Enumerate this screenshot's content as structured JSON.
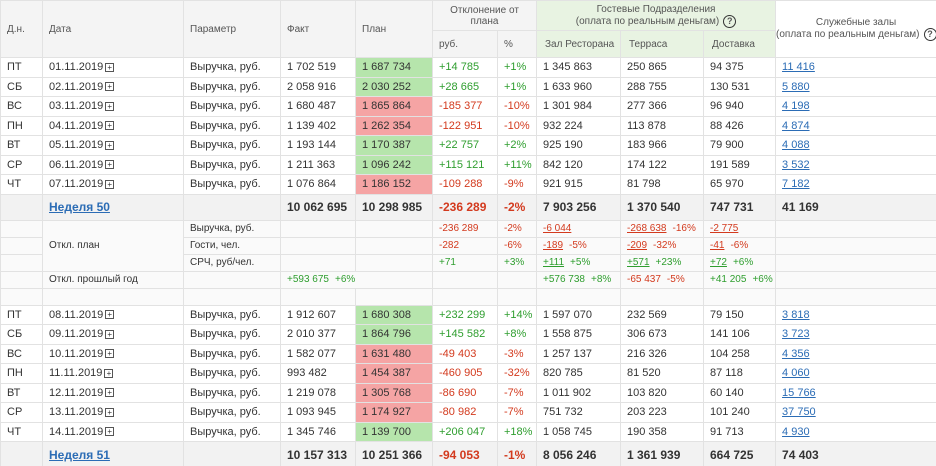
{
  "header": {
    "dow": "Д.н.",
    "date": "Дата",
    "param": "Параметр",
    "fact": "Факт",
    "plan": "План",
    "deviation": "Отклонение от плана",
    "rub": "руб.",
    "pct": "%",
    "guest_title": "Гостевые Подразделения",
    "guest_subtitle": "(оплата по реальным деньгам)",
    "hall": "Зал Ресторана",
    "terrace": "Терраса",
    "delivery": "Доставка",
    "service_title": "Служебные залы",
    "service_subtitle": "(оплата по реальным деньгам)"
  },
  "weeks": [
    {
      "days": [
        {
          "dow": "ПТ",
          "date": "01.11.2019",
          "param": "Выручка, руб.",
          "fact": "1 702 519",
          "plan": "1 687 734",
          "rub": "+14 785",
          "pct": "+1%",
          "hall": "1 345 863",
          "terrace": "250 865",
          "delivery": "94 375",
          "service": "11 416"
        },
        {
          "dow": "СБ",
          "date": "02.11.2019",
          "param": "Выручка, руб.",
          "fact": "2 058 916",
          "plan": "2 030 252",
          "rub": "+28 665",
          "pct": "+1%",
          "hall": "1 633 960",
          "terrace": "288 755",
          "delivery": "130 531",
          "service": "5 880"
        },
        {
          "dow": "ВС",
          "date": "03.11.2019",
          "param": "Выручка, руб.",
          "fact": "1 680 487",
          "plan": "1 865 864",
          "rub": "-185 377",
          "pct": "-10%",
          "hall": "1 301 984",
          "terrace": "277 366",
          "delivery": "96 940",
          "service": "4 198"
        },
        {
          "dow": "ПН",
          "date": "04.11.2019",
          "param": "Выручка, руб.",
          "fact": "1 139 402",
          "plan": "1 262 354",
          "rub": "-122 951",
          "pct": "-10%",
          "hall": "932 224",
          "terrace": "113 878",
          "delivery": "88 426",
          "service": "4 874"
        },
        {
          "dow": "ВТ",
          "date": "05.11.2019",
          "param": "Выручка, руб.",
          "fact": "1 193 144",
          "plan": "1 170 387",
          "rub": "+22 757",
          "pct": "+2%",
          "hall": "925 190",
          "terrace": "183 966",
          "delivery": "79 900",
          "service": "4 088"
        },
        {
          "dow": "СР",
          "date": "06.11.2019",
          "param": "Выручка, руб.",
          "fact": "1 211 363",
          "plan": "1 096 242",
          "rub": "+115 121",
          "pct": "+11%",
          "hall": "842 120",
          "terrace": "174 122",
          "delivery": "191 589",
          "service": "3 532"
        },
        {
          "dow": "ЧТ",
          "date": "07.11.2019",
          "param": "Выручка, руб.",
          "fact": "1 076 864",
          "plan": "1 186 152",
          "rub": "-109 288",
          "pct": "-9%",
          "hall": "921 915",
          "terrace": "81 798",
          "delivery": "65 970",
          "service": "7 182"
        }
      ],
      "total": {
        "label": "Неделя 50",
        "fact": "10 062 695",
        "plan": "10 298 985",
        "rub": "-236 289",
        "pct": "-2%",
        "hall": "7 903 256",
        "terrace": "1 370 540",
        "delivery": "747 731",
        "service": "41 169"
      },
      "plan_deviation": {
        "label": "Откл. план",
        "rows": [
          {
            "param": "Выручка, руб.",
            "rub": "-236 289",
            "pct": "-2%",
            "hall": [
              "-6 044"
            ],
            "terrace": [
              "-268 638",
              "-16%"
            ],
            "delivery": [
              "-2 775"
            ]
          },
          {
            "param": "Гости, чел.",
            "rub": "-282",
            "pct": "-6%",
            "hall": [
              "-189",
              "-5%"
            ],
            "terrace": [
              "-209",
              "-32%"
            ],
            "delivery": [
              "-41",
              "-6%"
            ]
          },
          {
            "param": "СРЧ, руб/чел.",
            "rub": "+71",
            "pct": "+3%",
            "hall": [
              "+111",
              "+5%"
            ],
            "terrace": [
              "+571",
              "+23%"
            ],
            "delivery": [
              "+72",
              "+6%"
            ]
          }
        ]
      },
      "last_year": {
        "label": "Откл. прошлый год",
        "fact": [
          "+593 675",
          "+6%"
        ],
        "hall": [
          "+576 738",
          "+8%"
        ],
        "terrace": [
          "-65 437",
          "-5%"
        ],
        "delivery": [
          "+41 205",
          "+6%"
        ]
      }
    },
    {
      "days": [
        {
          "dow": "ПТ",
          "date": "08.11.2019",
          "param": "Выручка, руб.",
          "fact": "1 912 607",
          "plan": "1 680 308",
          "rub": "+232 299",
          "pct": "+14%",
          "hall": "1 597 070",
          "terrace": "232 569",
          "delivery": "79 150",
          "service": "3 818"
        },
        {
          "dow": "СБ",
          "date": "09.11.2019",
          "param": "Выручка, руб.",
          "fact": "2 010 377",
          "plan": "1 864 796",
          "rub": "+145 582",
          "pct": "+8%",
          "hall": "1 558 875",
          "terrace": "306 673",
          "delivery": "141 106",
          "service": "3 723"
        },
        {
          "dow": "ВС",
          "date": "10.11.2019",
          "param": "Выручка, руб.",
          "fact": "1 582 077",
          "plan": "1 631 480",
          "rub": "-49 403",
          "pct": "-3%",
          "hall": "1 257 137",
          "terrace": "216 326",
          "delivery": "104 258",
          "service": "4 356"
        },
        {
          "dow": "ПН",
          "date": "11.11.2019",
          "param": "Выручка, руб.",
          "fact": "993 482",
          "plan": "1 454 387",
          "rub": "-460 905",
          "pct": "-32%",
          "hall": "820 785",
          "terrace": "81 520",
          "delivery": "87 118",
          "service": "4 060"
        },
        {
          "dow": "ВТ",
          "date": "12.11.2019",
          "param": "Выручка, руб.",
          "fact": "1 219 078",
          "plan": "1 305 768",
          "rub": "-86 690",
          "pct": "-7%",
          "hall": "1 011 902",
          "terrace": "103 820",
          "delivery": "60 140",
          "service": "15 766"
        },
        {
          "dow": "СР",
          "date": "13.11.2019",
          "param": "Выручка, руб.",
          "fact": "1 093 945",
          "plan": "1 174 927",
          "rub": "-80 982",
          "pct": "-7%",
          "hall": "751 732",
          "terrace": "203 223",
          "delivery": "101 240",
          "service": "37 750"
        },
        {
          "dow": "ЧТ",
          "date": "14.11.2019",
          "param": "Выручка, руб.",
          "fact": "1 345 746",
          "plan": "1 139 700",
          "rub": "+206 047",
          "pct": "+18%",
          "hall": "1 058 745",
          "terrace": "190 358",
          "delivery": "91 713",
          "service": "4 930"
        }
      ],
      "total": {
        "label": "Неделя 51",
        "fact": "10 157 313",
        "plan": "10 251 366",
        "rub": "-94 053",
        "pct": "-1%",
        "hall": "8 056 246",
        "terrace": "1 361 939",
        "delivery": "664 725",
        "service": "74 403"
      }
    }
  ]
}
